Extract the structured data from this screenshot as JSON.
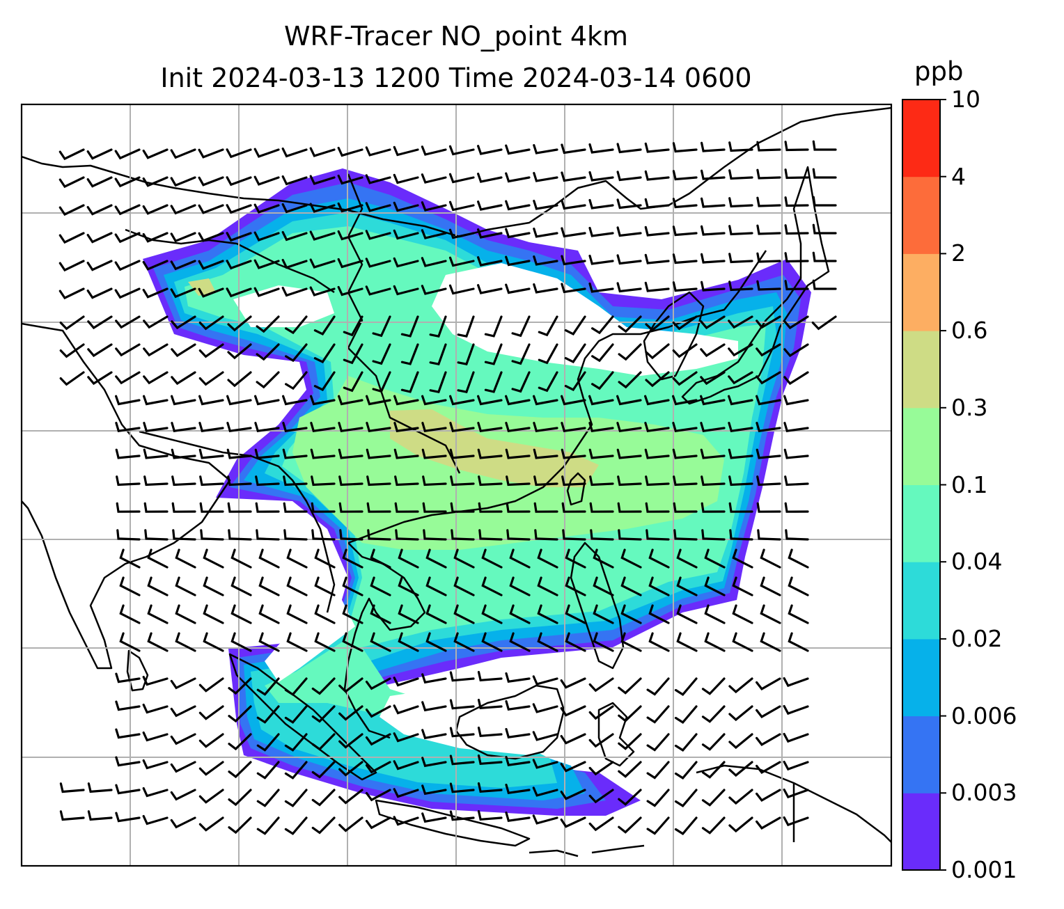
{
  "title": {
    "line1": "WRF-Tracer NO_point 4km",
    "line2": "Init 2024-03-13 1200 Time 2024-03-14 0600"
  },
  "colorbar": {
    "unit": "ppb",
    "levels": [
      "0.001",
      "0.003",
      "0.006",
      "0.02",
      "0.04",
      "0.1",
      "0.3",
      "0.6",
      "2",
      "4",
      "10"
    ],
    "colors": [
      "#6a2cfb",
      "#3574f3",
      "#06b1ea",
      "#2ddbd9",
      "#65f9be",
      "#97fb98",
      "#cedc85",
      "#fdae62",
      "#fd6c3a",
      "#fd2a15"
    ]
  },
  "map": {
    "background": "#ffffff",
    "gridline_color": "#b0b0b0",
    "coastline_color": "#000000",
    "wind_barb_color": "#000000"
  }
}
